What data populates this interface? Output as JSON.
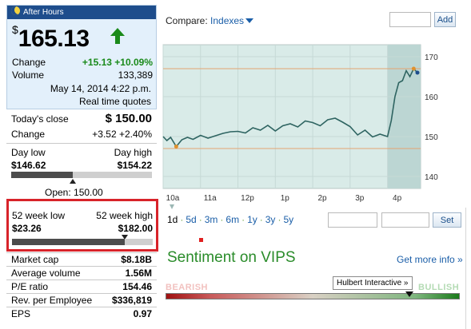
{
  "quote": {
    "after_hours_label": "After Hours",
    "currency_symbol": "$",
    "price": "165.13",
    "change_label": "Change",
    "change_value": "+15.13 +10.09%",
    "volume_label": "Volume",
    "volume_value": "133,389",
    "datetime": "May 14, 2014 4:22 p.m.",
    "realtime_label": "Real time quotes"
  },
  "close": {
    "todays_close_label": "Today's close",
    "todays_close_value": "$ 150.00",
    "change_label": "Change",
    "change_value": "+3.52 +2.40%"
  },
  "day_range": {
    "low_label": "Day low",
    "high_label": "Day high",
    "low_value": "$146.62",
    "high_value": "$154.22",
    "fill_fraction": 0.44,
    "open_label": "Open: 150.00",
    "open_fraction": 0.44
  },
  "week52": {
    "low_label": "52 week low",
    "high_label": "52 week high",
    "low_value": "$23.26",
    "high_value": "$182.00",
    "fill_fraction": 0.8
  },
  "stats": [
    {
      "label": "Market cap",
      "value": "$8.18B"
    },
    {
      "label": "Average volume",
      "value": "1.56M"
    },
    {
      "label": "P/E ratio",
      "value": "154.46"
    },
    {
      "label": "Rev. per Employee",
      "value": "$336,819"
    },
    {
      "label": "EPS",
      "value": "0.97"
    }
  ],
  "compare": {
    "label": "Compare:",
    "dropdown": "Indexes",
    "add_label": "Add"
  },
  "chart_data": {
    "type": "line",
    "x_ticks": [
      "10a",
      "11a",
      "12p",
      "1p",
      "2p",
      "3p",
      "4p"
    ],
    "y_ticks": [
      140,
      150,
      160,
      170
    ],
    "ylim": [
      137,
      173
    ],
    "reference_lines": [
      147,
      167
    ],
    "x": [
      0,
      0.1,
      0.2,
      0.35,
      0.5,
      0.65,
      0.8,
      1.0,
      1.2,
      1.4,
      1.6,
      1.8,
      2.0,
      2.2,
      2.4,
      2.6,
      2.8,
      3.0,
      3.2,
      3.4,
      3.6,
      3.8,
      4.0,
      4.2,
      4.4,
      4.6,
      4.8,
      5.0,
      5.2,
      5.4,
      5.6,
      5.8,
      6.0,
      6.1,
      6.2,
      6.3,
      6.4,
      6.5,
      6.6,
      6.7,
      6.8
    ],
    "y": [
      150.0,
      149.0,
      149.8,
      147.5,
      149.2,
      149.8,
      149.3,
      150.3,
      149.6,
      150.2,
      150.8,
      151.2,
      151.3,
      150.9,
      152.2,
      151.6,
      152.8,
      151.4,
      152.7,
      153.2,
      152.4,
      153.9,
      153.5,
      152.7,
      154.2,
      154.6,
      153.6,
      152.5,
      150.4,
      151.6,
      149.9,
      150.6,
      150.0,
      154.0,
      160.0,
      163.5,
      164.0,
      166.5,
      165.0,
      167.0,
      166.0
    ],
    "after_hours_from": 6.0
  },
  "ranges": {
    "items": [
      "1d",
      "5d",
      "3m",
      "6m",
      "1y",
      "3y",
      "5y"
    ],
    "set_label": "Set"
  },
  "sentiment": {
    "title": "Sentiment on VIPS",
    "get_more": "Get more info",
    "hulbert": "Hulbert Interactive »",
    "bearish": "BEARISH",
    "bullish": "BULLISH",
    "level_fraction": 0.83
  },
  "colors": {
    "brand_blue": "#1e4d8c",
    "up_green": "#1a8a1a",
    "highlight_red": "#d8232a",
    "sentiment_green": "#2a8c2a",
    "chart_line": "#2e6461",
    "chart_bg": "#d9ebe8"
  }
}
